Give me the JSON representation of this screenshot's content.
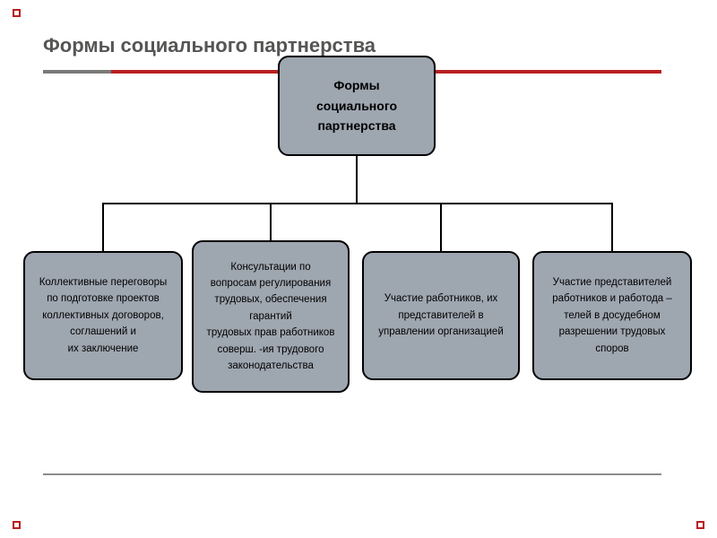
{
  "title": "Формы социального партнерства",
  "colors": {
    "title_text": "#555554",
    "underline_red": "#b92020",
    "underline_gray": "#7a7a79",
    "box_fill": "#9ea6b0",
    "box_border": "#000000",
    "connector": "#000000",
    "footer_line": "#8c8c8b",
    "background": "#ffffff"
  },
  "typography": {
    "title_fontsize": 22,
    "title_weight": "bold",
    "root_fontsize": 14,
    "root_weight": "bold",
    "child_fontsize": 11.5,
    "font_family": "Arial"
  },
  "layout": {
    "slide_width": 800,
    "slide_height": 600,
    "box_border_radius": 12
  },
  "diagram": {
    "type": "tree",
    "root": {
      "lines": [
        "Формы",
        "социального",
        "партнерства"
      ]
    },
    "children": [
      {
        "id": "c1",
        "lines": [
          "Коллективные переговоры",
          "по подготовке проектов",
          "коллективных договоров,",
          "соглашений и",
          "их заключение"
        ]
      },
      {
        "id": "c2",
        "lines": [
          "Консультации по",
          "вопросам регулирования",
          "трудовых, обеспечения",
          "гарантий",
          "трудовых прав работников",
          "соверш. -ия трудового",
          "законодательства"
        ]
      },
      {
        "id": "c3",
        "lines": [
          "Участие работников, их",
          "представителей в",
          "управлении организацией"
        ]
      },
      {
        "id": "c4",
        "lines": [
          "Участие представителей",
          "работников и работода –",
          "телей в досудебном",
          "разрешении трудовых",
          "споров"
        ]
      }
    ]
  }
}
